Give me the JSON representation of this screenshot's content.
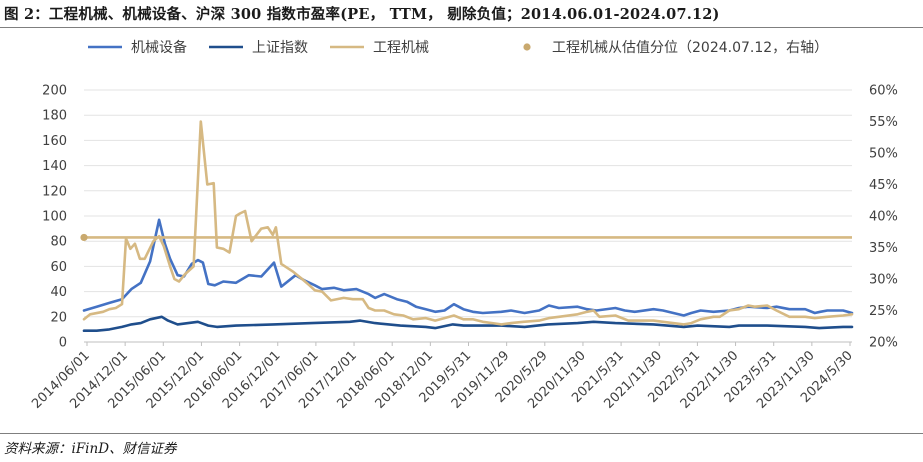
{
  "title": "图 2：工程机械、机械设备、沪深 300 指数市盈率(PE， TTM， 剔除负值；2014.06.01-2024.07.12)",
  "source": "资料来源：iFinD、财信证券",
  "colors": {
    "machinery_equipment": "#4472c4",
    "shanghai_composite": "#1f4e8c",
    "engineering_machinery": "#d6b983",
    "percentile": "#c9a96e"
  },
  "chart_data": {
    "type": "line",
    "y_left": {
      "range": [
        0,
        200
      ],
      "ticks": [
        "0",
        "20",
        "40",
        "60",
        "80",
        "100",
        "120",
        "140",
        "160",
        "180",
        "200"
      ]
    },
    "y_right": {
      "range": [
        0.2,
        0.6
      ],
      "ticks": [
        "20%",
        "25%",
        "30%",
        "35%",
        "40%",
        "45%",
        "50%",
        "55%",
        "60%"
      ]
    },
    "x_ticks": [
      "2014/06/01",
      "2014/12/01",
      "2015/06/01",
      "2015/12/01",
      "2016/06/01",
      "2016/12/01",
      "2017/06/01",
      "2017/12/01",
      "2018/06/01",
      "2018/12/01",
      "2019/5/31",
      "2019/11/29",
      "2020/5/29",
      "2020/11/30",
      "2021/5/31",
      "2021/11/30",
      "2022/5/31",
      "2022/11/30",
      "2023/5/31",
      "2023/11/30",
      "2024/5/30"
    ],
    "x_domain": [
      "2014-06-01",
      "2024-07-12"
    ],
    "legend": [
      "机械设备",
      "上证指数",
      "工程机械",
      "工程机械从估值分位（2024.07.12，右轴）"
    ],
    "series": [
      {
        "name": "机械设备",
        "axis": "left",
        "points": [
          [
            "2014-06-01",
            25
          ],
          [
            "2014-08-01",
            28
          ],
          [
            "2014-10-01",
            31
          ],
          [
            "2014-12-01",
            34
          ],
          [
            "2015-01-15",
            42
          ],
          [
            "2015-03-01",
            47
          ],
          [
            "2015-04-15",
            64
          ],
          [
            "2015-05-28",
            97
          ],
          [
            "2015-06-25",
            78
          ],
          [
            "2015-07-20",
            66
          ],
          [
            "2015-08-25",
            53
          ],
          [
            "2015-09-25",
            52
          ],
          [
            "2015-11-01",
            62
          ],
          [
            "2015-12-01",
            65
          ],
          [
            "2015-12-25",
            63
          ],
          [
            "2016-01-20",
            46
          ],
          [
            "2016-02-20",
            45
          ],
          [
            "2016-04-01",
            48
          ],
          [
            "2016-06-01",
            47
          ],
          [
            "2016-08-01",
            53
          ],
          [
            "2016-10-01",
            52
          ],
          [
            "2016-12-01",
            63
          ],
          [
            "2017-01-05",
            44
          ],
          [
            "2017-03-15",
            53
          ],
          [
            "2017-04-25",
            49
          ],
          [
            "2017-06-15",
            45
          ],
          [
            "2017-07-20",
            42
          ],
          [
            "2017-09-15",
            43
          ],
          [
            "2017-11-01",
            41
          ],
          [
            "2018-01-01",
            42
          ],
          [
            "2018-03-01",
            38
          ],
          [
            "2018-04-01",
            35
          ],
          [
            "2018-05-15",
            38
          ],
          [
            "2018-07-15",
            34
          ],
          [
            "2018-09-01",
            32
          ],
          [
            "2018-10-15",
            28
          ],
          [
            "2018-12-01",
            26
          ],
          [
            "2019-01-15",
            24
          ],
          [
            "2019-03-01",
            25
          ],
          [
            "2019-04-15",
            30
          ],
          [
            "2019-05-31",
            26
          ],
          [
            "2019-07-15",
            24
          ],
          [
            "2019-09-01",
            23
          ],
          [
            "2019-11-29",
            24
          ],
          [
            "2020-01-15",
            25
          ],
          [
            "2020-03-20",
            23
          ],
          [
            "2020-05-29",
            25
          ],
          [
            "2020-07-15",
            29
          ],
          [
            "2020-09-01",
            27
          ],
          [
            "2020-11-30",
            28
          ],
          [
            "2021-01-15",
            26
          ],
          [
            "2021-03-01",
            25
          ],
          [
            "2021-05-31",
            27
          ],
          [
            "2021-07-15",
            25
          ],
          [
            "2021-09-01",
            24
          ],
          [
            "2021-11-30",
            26
          ],
          [
            "2022-01-15",
            25
          ],
          [
            "2022-04-25",
            21
          ],
          [
            "2022-05-31",
            23
          ],
          [
            "2022-07-15",
            25
          ],
          [
            "2022-09-15",
            24
          ],
          [
            "2022-11-30",
            25
          ],
          [
            "2023-01-15",
            27
          ],
          [
            "2023-03-01",
            28
          ],
          [
            "2023-05-31",
            27
          ],
          [
            "2023-07-15",
            28
          ],
          [
            "2023-09-15",
            26
          ],
          [
            "2023-11-30",
            26
          ],
          [
            "2024-01-15",
            23
          ],
          [
            "2024-02-10",
            24
          ],
          [
            "2024-03-15",
            25
          ],
          [
            "2024-05-30",
            25
          ],
          [
            "2024-07-12",
            23
          ]
        ]
      },
      {
        "name": "上证指数",
        "axis": "left",
        "points": [
          [
            "2014-06-01",
            9
          ],
          [
            "2014-08-01",
            9
          ],
          [
            "2014-10-01",
            10
          ],
          [
            "2014-12-01",
            12
          ],
          [
            "2015-01-15",
            14
          ],
          [
            "2015-03-01",
            15
          ],
          [
            "2015-04-15",
            18
          ],
          [
            "2015-06-10",
            20
          ],
          [
            "2015-07-10",
            17
          ],
          [
            "2015-08-25",
            14
          ],
          [
            "2015-10-15",
            15
          ],
          [
            "2015-12-01",
            16
          ],
          [
            "2016-01-20",
            13
          ],
          [
            "2016-03-01",
            12
          ],
          [
            "2016-06-01",
            13
          ],
          [
            "2016-12-01",
            14
          ],
          [
            "2017-06-01",
            15
          ],
          [
            "2017-12-01",
            16
          ],
          [
            "2018-01-20",
            17
          ],
          [
            "2018-04-01",
            15
          ],
          [
            "2018-08-01",
            13
          ],
          [
            "2018-12-01",
            12
          ],
          [
            "2019-01-15",
            11
          ],
          [
            "2019-04-10",
            14
          ],
          [
            "2019-06-01",
            13
          ],
          [
            "2019-11-29",
            13
          ],
          [
            "2020-03-20",
            12
          ],
          [
            "2020-07-10",
            14
          ],
          [
            "2020-11-30",
            15
          ],
          [
            "2021-02-15",
            16
          ],
          [
            "2021-05-31",
            15
          ],
          [
            "2021-11-30",
            14
          ],
          [
            "2022-04-25",
            12
          ],
          [
            "2022-07-01",
            13
          ],
          [
            "2022-11-30",
            12
          ],
          [
            "2023-01-15",
            13
          ],
          [
            "2023-05-31",
            13
          ],
          [
            "2023-11-30",
            12
          ],
          [
            "2024-02-05",
            11
          ],
          [
            "2024-05-30",
            12
          ],
          [
            "2024-07-12",
            12
          ]
        ]
      },
      {
        "name": "工程机械",
        "axis": "left",
        "points": [
          [
            "2014-06-01",
            18
          ],
          [
            "2014-07-01",
            22
          ],
          [
            "2014-09-01",
            24
          ],
          [
            "2014-10-01",
            26
          ],
          [
            "2014-11-01",
            27
          ],
          [
            "2014-12-01",
            30
          ],
          [
            "2014-12-20",
            82
          ],
          [
            "2015-01-10",
            74
          ],
          [
            "2015-02-01",
            78
          ],
          [
            "2015-02-25",
            66
          ],
          [
            "2015-03-20",
            66
          ],
          [
            "2015-05-01",
            80
          ],
          [
            "2015-05-28",
            84
          ],
          [
            "2015-06-20",
            76
          ],
          [
            "2015-07-20",
            60
          ],
          [
            "2015-08-10",
            50
          ],
          [
            "2015-09-01",
            48
          ],
          [
            "2015-10-01",
            54
          ],
          [
            "2015-11-10",
            60
          ],
          [
            "2015-12-15",
            175
          ],
          [
            "2016-01-15",
            125
          ],
          [
            "2016-02-15",
            126
          ],
          [
            "2016-03-01",
            75
          ],
          [
            "2016-04-01",
            74
          ],
          [
            "2016-05-01",
            71
          ],
          [
            "2016-06-01",
            100
          ],
          [
            "2016-06-20",
            102
          ],
          [
            "2016-07-15",
            104
          ],
          [
            "2016-08-15",
            80
          ],
          [
            "2016-10-01",
            90
          ],
          [
            "2016-11-01",
            91
          ],
          [
            "2016-11-25",
            85
          ],
          [
            "2016-12-10",
            91
          ],
          [
            "2017-01-05",
            62
          ],
          [
            "2017-03-01",
            56
          ],
          [
            "2017-04-15",
            50
          ],
          [
            "2017-05-20",
            45
          ],
          [
            "2017-06-15",
            41
          ],
          [
            "2017-07-20",
            40
          ],
          [
            "2017-09-01",
            33
          ],
          [
            "2017-11-01",
            35
          ],
          [
            "2017-12-15",
            34
          ],
          [
            "2018-02-01",
            34
          ],
          [
            "2018-03-01",
            27
          ],
          [
            "2018-04-01",
            25
          ],
          [
            "2018-05-15",
            25
          ],
          [
            "2018-07-01",
            22
          ],
          [
            "2018-08-15",
            21
          ],
          [
            "2018-10-01",
            18
          ],
          [
            "2018-12-01",
            19
          ],
          [
            "2019-01-15",
            17
          ],
          [
            "2019-03-01",
            19
          ],
          [
            "2019-04-15",
            21
          ],
          [
            "2019-05-31",
            18
          ],
          [
            "2019-07-15",
            18
          ],
          [
            "2019-09-01",
            16
          ],
          [
            "2019-11-29",
            14
          ],
          [
            "2020-01-15",
            15
          ],
          [
            "2020-03-15",
            16
          ],
          [
            "2020-05-29",
            17
          ],
          [
            "2020-07-15",
            19
          ],
          [
            "2020-09-01",
            20
          ],
          [
            "2020-11-30",
            22
          ],
          [
            "2021-01-15",
            24
          ],
          [
            "2021-02-15",
            25
          ],
          [
            "2021-03-15",
            20
          ],
          [
            "2021-05-31",
            21
          ],
          [
            "2021-08-01",
            17
          ],
          [
            "2021-11-30",
            17
          ],
          [
            "2022-01-15",
            16
          ],
          [
            "2022-04-25",
            14
          ],
          [
            "2022-05-31",
            15
          ],
          [
            "2022-07-15",
            18
          ],
          [
            "2022-09-15",
            20
          ],
          [
            "2022-10-15",
            20
          ],
          [
            "2022-11-30",
            25
          ],
          [
            "2023-01-15",
            26
          ],
          [
            "2023-03-01",
            29
          ],
          [
            "2023-04-01",
            28
          ],
          [
            "2023-05-31",
            29
          ],
          [
            "2023-07-15",
            25
          ],
          [
            "2023-09-15",
            20
          ],
          [
            "2023-11-30",
            20
          ],
          [
            "2024-01-15",
            19
          ],
          [
            "2024-03-15",
            20
          ],
          [
            "2024-05-30",
            21
          ],
          [
            "2024-07-12",
            22
          ]
        ]
      },
      {
        "name": "工程机械从估值分位（2024.07.12，右轴）",
        "axis": "right",
        "value": 0.366,
        "start": "2014-06-01",
        "end": "2024-07-12"
      }
    ]
  }
}
